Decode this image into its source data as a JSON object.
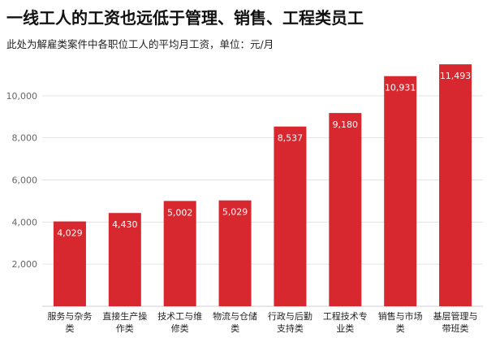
{
  "header": {
    "title": "一线工人的工资也远低于管理、销售、工程类员工",
    "subtitle": "此处为解雇类案件中各职位工人的平均月工资，单位：元/月"
  },
  "colors": {
    "bar": "#d7282f",
    "grid": "#e3e3e3",
    "axis": "#cfcfcf"
  },
  "chart_data": {
    "type": "bar",
    "title": "一线工人的工资也远低于管理、销售、工程类员工",
    "subtitle": "此处为解雇类案件中各职位工人的平均月工资，单位：元/月",
    "categories": [
      [
        "服务与杂务",
        "类"
      ],
      [
        "直接生产操",
        "作类"
      ],
      [
        "技术工与维",
        "修类"
      ],
      [
        "物流与仓储",
        "类"
      ],
      [
        "行政与后勤",
        "支持类"
      ],
      [
        "工程技术专",
        "业类"
      ],
      [
        "销售与市场",
        "类"
      ],
      [
        "基层管理与",
        "带班类"
      ]
    ],
    "values": [
      4029,
      4430,
      5002,
      5029,
      8537,
      9180,
      10931,
      11493
    ],
    "value_labels": [
      "4,029",
      "4,430",
      "5,002",
      "5,029",
      "8,537",
      "9,180",
      "10,931",
      "11,493"
    ],
    "y_ticks": [
      "2,000",
      "4,000",
      "6,000",
      "8,000",
      "10,000"
    ],
    "y_tick_values": [
      2000,
      4000,
      6000,
      8000,
      10000
    ],
    "ylim": [
      0,
      12000
    ],
    "grid": true,
    "legend": "none"
  }
}
